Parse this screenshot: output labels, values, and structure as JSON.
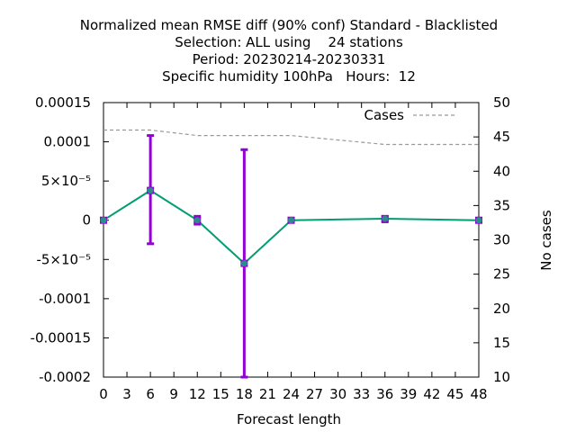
{
  "chart_data": {
    "type": "line",
    "title_lines": [
      "Normalized mean RMSE diff (90% conf) Standard - Blacklisted",
      "Selection: ALL using    24 stations",
      "Period: 20230214-20230331",
      "Specific humidity 100hPa   Hours:  12"
    ],
    "xlabel": "Forecast length",
    "ylabel_right": "No cases",
    "xlim": [
      0,
      48
    ],
    "ylim": [
      -0.0002,
      0.00015
    ],
    "y2lim": [
      10,
      50
    ],
    "x_ticks": [
      0,
      3,
      6,
      9,
      12,
      15,
      18,
      21,
      24,
      27,
      30,
      33,
      36,
      39,
      42,
      45,
      48
    ],
    "y_ticks": [
      {
        "value": 0.00015,
        "label": "0.00015"
      },
      {
        "value": 0.0001,
        "label": "0.0001"
      },
      {
        "value": 5e-05,
        "label": "5×10⁻⁵"
      },
      {
        "value": 0,
        "label": "0"
      },
      {
        "value": -5e-05,
        "label": "-5×10⁻⁵"
      },
      {
        "value": -0.0001,
        "label": "-0.0001"
      },
      {
        "value": -0.00015,
        "label": "-0.00015"
      },
      {
        "value": -0.0002,
        "label": "-0.0002"
      }
    ],
    "y2_ticks": [
      10,
      15,
      20,
      25,
      30,
      35,
      40,
      45,
      50
    ],
    "series": [
      {
        "kind": "mean_diff",
        "color": "#009e73",
        "marker_color": "#9400d3",
        "x": [
          0,
          6,
          12,
          18,
          24,
          36,
          48
        ],
        "y": [
          0,
          3.8e-05,
          0,
          -5.5e-05,
          0,
          2e-06,
          0
        ],
        "err_low": [
          0,
          -3e-05,
          -5e-06,
          -0.0002,
          0,
          -2e-06,
          0
        ],
        "err_high": [
          0,
          0.000108,
          5e-06,
          9e-05,
          0,
          5e-06,
          0
        ]
      },
      {
        "kind": "cases",
        "name": "Cases",
        "axis": "right",
        "color": "#999999",
        "style": "dashed",
        "x": [
          0,
          6,
          12,
          18,
          24,
          36,
          48
        ],
        "y": [
          46,
          46,
          45.2,
          45.2,
          45.2,
          43.9,
          43.9
        ]
      }
    ],
    "legend": "top-right",
    "grid": false
  }
}
